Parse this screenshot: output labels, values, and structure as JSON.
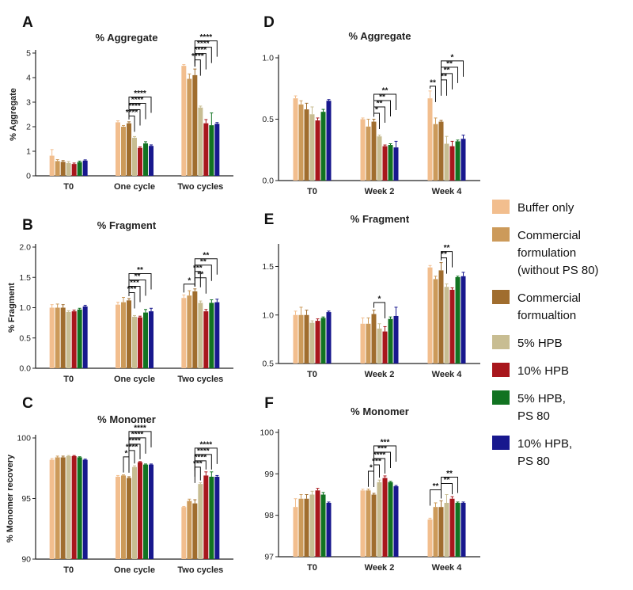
{
  "legend": [
    {
      "lines": [
        "Buffer only"
      ],
      "color": "#f2be8e"
    },
    {
      "lines": [
        "Commercial",
        "formulation",
        "(without PS 80)"
      ],
      "color": "#cc9a5a"
    },
    {
      "lines": [
        "Commercial",
        "formualtion"
      ],
      "color": "#a06d2e"
    },
    {
      "lines": [
        "5% HPB"
      ],
      "color": "#c8bd92"
    },
    {
      "lines": [
        "10% HPB"
      ],
      "color": "#a8161c"
    },
    {
      "lines": [
        "5% HPB,",
        "PS 80"
      ],
      "color": "#117321"
    },
    {
      "lines": [
        "10% HPB,",
        "PS 80"
      ],
      "color": "#18188e"
    }
  ],
  "chart_data": [
    {
      "panel": "A",
      "type": "bar",
      "title": "% Aggregate",
      "ylabel": "% Aggregate",
      "categories": [
        "T0",
        "One cycle",
        "Two cycles"
      ],
      "ylim": [
        0,
        5
      ],
      "yticks": [
        "0",
        "1",
        "2",
        "3",
        "4",
        "5"
      ],
      "values": [
        [
          0.82,
          0.6,
          0.57,
          0.52,
          0.48,
          0.56,
          0.62
        ],
        [
          2.18,
          2.0,
          2.14,
          1.55,
          1.14,
          1.32,
          1.22
        ],
        [
          4.48,
          3.95,
          4.1,
          2.78,
          2.14,
          2.06,
          2.12
        ]
      ],
      "errors": [
        [
          0.25,
          0.06,
          0.05,
          0.06,
          0.04,
          0.04,
          0.03
        ],
        [
          0.06,
          0.05,
          0.06,
          0.05,
          0.04,
          0.07,
          0.04
        ],
        [
          0.05,
          0.2,
          0.25,
          0.06,
          0.15,
          0.5,
          0.05
        ]
      ],
      "significance": [
        {
          "group": 1,
          "from": 2,
          "to": 3,
          "label": "****"
        },
        {
          "group": 1,
          "from": 2,
          "to": 4,
          "label": "****"
        },
        {
          "group": 1,
          "from": 2,
          "to": 5,
          "label": "****"
        },
        {
          "group": 1,
          "from": 2,
          "to": 6,
          "label": "****"
        },
        {
          "group": 2,
          "from": 2,
          "to": 3,
          "label": "****"
        },
        {
          "group": 2,
          "from": 2,
          "to": 4,
          "label": "****"
        },
        {
          "group": 2,
          "from": 2,
          "to": 5,
          "label": "****"
        },
        {
          "group": 2,
          "from": 2,
          "to": 6,
          "label": "****"
        }
      ]
    },
    {
      "panel": "B",
      "type": "bar",
      "title": "% Fragment",
      "ylabel": "% Fragment",
      "categories": [
        "T0",
        "One cycle",
        "Two cycles"
      ],
      "ylim": [
        0,
        2
      ],
      "yticks": [
        "0.0",
        "0.5",
        "1.0",
        "1.5",
        "2.0"
      ],
      "values": [
        [
          1.0,
          1.0,
          1.0,
          0.93,
          0.94,
          0.97,
          1.02
        ],
        [
          1.05,
          1.09,
          1.12,
          0.85,
          0.84,
          0.92,
          0.94
        ],
        [
          1.16,
          1.2,
          1.27,
          1.08,
          0.94,
          1.08,
          1.09
        ]
      ],
      "errors": [
        [
          0.05,
          0.06,
          0.05,
          0.02,
          0.02,
          0.02,
          0.02
        ],
        [
          0.04,
          0.08,
          0.03,
          0.02,
          0.02,
          0.05,
          0.05
        ],
        [
          0.05,
          0.08,
          0.04,
          0.03,
          0.03,
          0.05,
          0.05
        ]
      ],
      "significance": [
        {
          "group": 1,
          "from": 2,
          "to": 3,
          "label": "***"
        },
        {
          "group": 1,
          "from": 2,
          "to": 4,
          "label": "***"
        },
        {
          "group": 1,
          "from": 2,
          "to": 5,
          "label": "**"
        },
        {
          "group": 1,
          "from": 2,
          "to": 6,
          "label": "**"
        },
        {
          "group": 2,
          "from": 0,
          "to": 2,
          "label": "*"
        },
        {
          "group": 2,
          "from": 2,
          "to": 4,
          "label": "**"
        },
        {
          "group": 2,
          "from": 2,
          "to": 3,
          "label": "***"
        },
        {
          "group": 2,
          "from": 2,
          "to": 5,
          "label": "**"
        },
        {
          "group": 2,
          "from": 2,
          "to": 6,
          "label": "**"
        }
      ]
    },
    {
      "panel": "C",
      "type": "bar",
      "title": "% Monomer",
      "ylabel": "% Monomer recovery",
      "categories": [
        "T0",
        "One cycle",
        "Two cycles"
      ],
      "ylim": [
        90,
        100
      ],
      "yticks": [
        "90",
        "95",
        "100"
      ],
      "values": [
        [
          98.2,
          98.4,
          98.4,
          98.5,
          98.5,
          98.4,
          98.2
        ],
        [
          96.8,
          96.9,
          96.7,
          97.6,
          98.0,
          97.8,
          97.8
        ],
        [
          94.3,
          94.8,
          94.6,
          96.2,
          96.9,
          96.8,
          96.8
        ]
      ],
      "errors": [
        [
          0.1,
          0.1,
          0.1,
          0.05,
          0.05,
          0.05,
          0.05
        ],
        [
          0.1,
          0.05,
          0.1,
          0.1,
          0.05,
          0.05,
          0.05
        ],
        [
          0.05,
          0.15,
          0.3,
          0.1,
          0.3,
          0.4,
          0.1
        ]
      ],
      "significance": [
        {
          "group": 1,
          "from": 1,
          "to": 2,
          "label": "*"
        },
        {
          "group": 1,
          "from": 2,
          "to": 3,
          "label": "****"
        },
        {
          "group": 1,
          "from": 2,
          "to": 4,
          "label": "****"
        },
        {
          "group": 1,
          "from": 2,
          "to": 5,
          "label": "****"
        },
        {
          "group": 1,
          "from": 2,
          "to": 6,
          "label": "****"
        },
        {
          "group": 2,
          "from": 2,
          "to": 3,
          "label": "***"
        },
        {
          "group": 2,
          "from": 2,
          "to": 4,
          "label": "****"
        },
        {
          "group": 2,
          "from": 2,
          "to": 5,
          "label": "****"
        },
        {
          "group": 2,
          "from": 2,
          "to": 6,
          "label": "****"
        }
      ]
    },
    {
      "panel": "D",
      "type": "bar",
      "title": "% Aggregate",
      "ylabel": "",
      "categories": [
        "T0",
        "Week 2",
        "Week 4"
      ],
      "ylim": [
        0,
        1
      ],
      "yticks": [
        "0.0",
        "0.5",
        "1.0"
      ],
      "values": [
        [
          0.67,
          0.62,
          0.58,
          0.54,
          0.49,
          0.56,
          0.65
        ],
        [
          0.5,
          0.44,
          0.48,
          0.36,
          0.28,
          0.29,
          0.27
        ],
        [
          0.67,
          0.46,
          0.48,
          0.3,
          0.28,
          0.32,
          0.34
        ]
      ],
      "errors": [
        [
          0.02,
          0.03,
          0.05,
          0.06,
          0.02,
          0.02,
          0.01
        ],
        [
          0.01,
          0.06,
          0.02,
          0.01,
          0.01,
          0.01,
          0.05
        ],
        [
          0.06,
          0.05,
          0.01,
          0.06,
          0.04,
          0.01,
          0.03
        ]
      ],
      "significance": [
        {
          "group": 1,
          "from": 2,
          "to": 3,
          "label": "*"
        },
        {
          "group": 1,
          "from": 2,
          "to": 4,
          "label": "**"
        },
        {
          "group": 1,
          "from": 2,
          "to": 5,
          "label": "**"
        },
        {
          "group": 1,
          "from": 2,
          "to": 6,
          "label": "**"
        },
        {
          "group": 2,
          "from": 0,
          "to": 1,
          "label": "**"
        },
        {
          "group": 2,
          "from": 2,
          "to": 3,
          "label": "**"
        },
        {
          "group": 2,
          "from": 2,
          "to": 4,
          "label": "**"
        },
        {
          "group": 2,
          "from": 2,
          "to": 5,
          "label": "**"
        },
        {
          "group": 2,
          "from": 2,
          "to": 6,
          "label": "*"
        }
      ]
    },
    {
      "panel": "E",
      "type": "bar",
      "title": "% Fragment",
      "ylabel": "",
      "categories": [
        "T0",
        "Week 2",
        "Week 4"
      ],
      "ylim": [
        0.5,
        1.7
      ],
      "yticks": [
        "0.5",
        "1.0",
        "1.5"
      ],
      "ytick_values": [
        0.5,
        1.0,
        1.5
      ],
      "values": [
        [
          1.0,
          1.0,
          1.0,
          0.92,
          0.94,
          0.97,
          1.03
        ],
        [
          0.91,
          0.91,
          1.01,
          0.86,
          0.83,
          0.96,
          0.99
        ],
        [
          1.49,
          1.37,
          1.46,
          1.29,
          1.26,
          1.39,
          1.4
        ]
      ],
      "errors": [
        [
          0.04,
          0.08,
          0.05,
          0.02,
          0.02,
          0.01,
          0.01
        ],
        [
          0.06,
          0.06,
          0.04,
          0.05,
          0.05,
          0.02,
          0.09
        ],
        [
          0.02,
          0.03,
          0.08,
          0.03,
          0.02,
          0.01,
          0.04
        ]
      ],
      "significance": [
        {
          "group": 1,
          "from": 2,
          "to": 4,
          "label": "*"
        },
        {
          "group": 2,
          "from": 2,
          "to": 3,
          "label": "**"
        },
        {
          "group": 2,
          "from": 2,
          "to": 4,
          "label": "**"
        }
      ]
    },
    {
      "panel": "F",
      "type": "bar",
      "title": "% Monomer",
      "ylabel": "",
      "categories": [
        "T0",
        "Week 2",
        "Week 4"
      ],
      "ylim": [
        97,
        100
      ],
      "yticks": [
        "97",
        "98",
        "99",
        "100"
      ],
      "values": [
        [
          98.2,
          98.4,
          98.4,
          98.5,
          98.6,
          98.5,
          98.3
        ],
        [
          98.6,
          98.6,
          98.5,
          98.8,
          98.9,
          98.8,
          98.7
        ],
        [
          97.9,
          98.2,
          98.2,
          98.3,
          98.4,
          98.3,
          98.3
        ]
      ],
      "errors": [
        [
          0.2,
          0.1,
          0.1,
          0.08,
          0.05,
          0.05,
          0.02
        ],
        [
          0.03,
          0.03,
          0.03,
          0.05,
          0.05,
          0.02,
          0.02
        ],
        [
          0.03,
          0.1,
          0.15,
          0.2,
          0.05,
          0.02,
          0.02
        ]
      ],
      "significance": [
        {
          "group": 1,
          "from": 1,
          "to": 2,
          "label": "*"
        },
        {
          "group": 1,
          "from": 2,
          "to": 3,
          "label": "***"
        },
        {
          "group": 1,
          "from": 2,
          "to": 4,
          "label": "****"
        },
        {
          "group": 1,
          "from": 2,
          "to": 5,
          "label": "***"
        },
        {
          "group": 1,
          "from": 2,
          "to": 6,
          "label": "***"
        },
        {
          "group": 2,
          "from": 0,
          "to": 2,
          "label": "**"
        },
        {
          "group": 2,
          "from": 2,
          "to": 4,
          "label": "**"
        },
        {
          "group": 2,
          "from": 2,
          "to": 5,
          "label": "**"
        }
      ]
    }
  ]
}
